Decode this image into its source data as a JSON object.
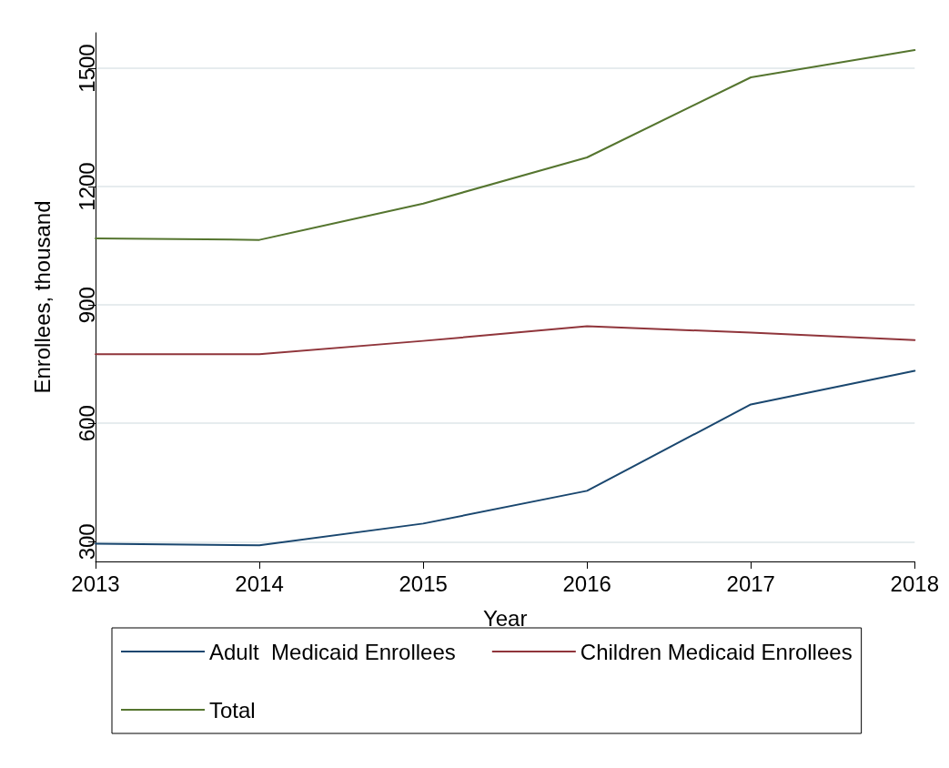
{
  "chart_data": {
    "type": "line",
    "xlabel": "Year",
    "ylabel": "Enrollees, thousand",
    "x": [
      2013,
      2014,
      2015,
      2016,
      2017,
      2018
    ],
    "series": [
      {
        "name": "Adult  Medicaid Enrollees",
        "color": "#1a476f",
        "values": [
          295,
          291,
          346,
          429,
          648,
          733
        ]
      },
      {
        "name": "Children Medicaid Enrollees",
        "color": "#90353b",
        "values": [
          775,
          775,
          809,
          846,
          830,
          811
        ]
      },
      {
        "name": "Total",
        "color": "#55752f",
        "values": [
          1069,
          1065,
          1157,
          1274,
          1477,
          1546
        ]
      }
    ],
    "xlim": [
      2013,
      2018
    ],
    "xticks": [
      2013,
      2014,
      2015,
      2016,
      2017,
      2018
    ],
    "ylim": [
      250,
      1590
    ],
    "yticks": [
      300,
      600,
      900,
      1200,
      1500
    ],
    "grid": "y",
    "legend": "bottom",
    "marker": "none",
    "line_style": "solid"
  }
}
